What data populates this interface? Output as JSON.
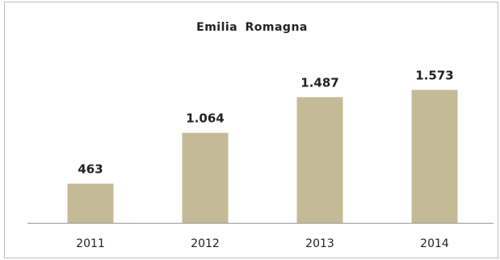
{
  "chart_data": {
    "type": "bar",
    "title": "Emilia  Romagna",
    "categories": [
      "2011",
      "2012",
      "2013",
      "2014"
    ],
    "values": [
      463,
      1064,
      1487,
      1573
    ],
    "value_labels": [
      "463",
      "1.064",
      "1.487",
      "1.573"
    ],
    "xlabel": "",
    "ylabel": "",
    "ylim": [
      0,
      1700
    ],
    "grid": false,
    "legend": "none",
    "colors": {
      "bar": "#c4ba96",
      "axis": "#9a9a9a",
      "frame": "#bdbdbd",
      "text": "#222222"
    }
  }
}
